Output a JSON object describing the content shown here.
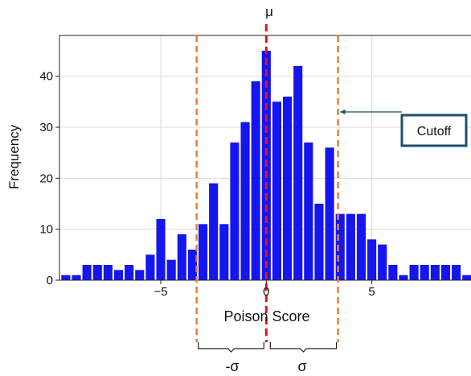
{
  "chart_data": {
    "type": "bar",
    "title": "μ",
    "xlabel": "Poison Score",
    "ylabel": "Frequency",
    "xlim": [
      -9.8,
      9.7
    ],
    "ylim": [
      0,
      48
    ],
    "x_ticks": [
      -5,
      0,
      5
    ],
    "x_tick_labels": [
      "−5",
      "0",
      "5"
    ],
    "y_ticks": [
      0,
      10,
      20,
      30,
      40
    ],
    "y_tick_labels": [
      "0",
      "10",
      "20",
      "30",
      "40"
    ],
    "grid": true,
    "bar_color": "#1515f0",
    "bin_width": 0.5,
    "bins": [
      {
        "x": -9.5,
        "value": 1
      },
      {
        "x": -9.0,
        "value": 1
      },
      {
        "x": -8.5,
        "value": 3
      },
      {
        "x": -8.0,
        "value": 3
      },
      {
        "x": -7.5,
        "value": 3
      },
      {
        "x": -7.0,
        "value": 2
      },
      {
        "x": -6.5,
        "value": 3
      },
      {
        "x": -6.0,
        "value": 2
      },
      {
        "x": -5.5,
        "value": 5
      },
      {
        "x": -5.0,
        "value": 12
      },
      {
        "x": -4.5,
        "value": 4
      },
      {
        "x": -4.0,
        "value": 9
      },
      {
        "x": -3.5,
        "value": 6
      },
      {
        "x": -3.0,
        "value": 11
      },
      {
        "x": -2.5,
        "value": 19
      },
      {
        "x": -2.0,
        "value": 11
      },
      {
        "x": -1.5,
        "value": 27
      },
      {
        "x": -1.0,
        "value": 31
      },
      {
        "x": -0.5,
        "value": 39
      },
      {
        "x": 0.0,
        "value": 45
      },
      {
        "x": 0.5,
        "value": 35
      },
      {
        "x": 1.0,
        "value": 36
      },
      {
        "x": 1.5,
        "value": 42
      },
      {
        "x": 2.0,
        "value": 27
      },
      {
        "x": 2.5,
        "value": 15
      },
      {
        "x": 3.0,
        "value": 26
      },
      {
        "x": 3.5,
        "value": 13
      },
      {
        "x": 4.0,
        "value": 13
      },
      {
        "x": 4.5,
        "value": 13
      },
      {
        "x": 5.0,
        "value": 8
      },
      {
        "x": 5.5,
        "value": 7
      },
      {
        "x": 6.0,
        "value": 3
      },
      {
        "x": 6.5,
        "value": 1
      },
      {
        "x": 7.0,
        "value": 3
      },
      {
        "x": 7.5,
        "value": 3
      },
      {
        "x": 8.0,
        "value": 3
      },
      {
        "x": 8.5,
        "value": 3
      },
      {
        "x": 9.0,
        "value": 3
      },
      {
        "x": 9.5,
        "value": 1
      }
    ],
    "mean_line": {
      "x": 0.0,
      "color": "#e8101a"
    },
    "sigma_lines": {
      "x": [
        -3.3,
        3.4
      ],
      "color": "#ee7d31"
    },
    "sigma_labels": [
      "-σ",
      "σ"
    ],
    "cutoff_label": "Cutoff",
    "cutoff_box_color": "#1b4f6b",
    "cutoff_arrow_target": {
      "x": 3.4,
      "y": 33
    }
  }
}
